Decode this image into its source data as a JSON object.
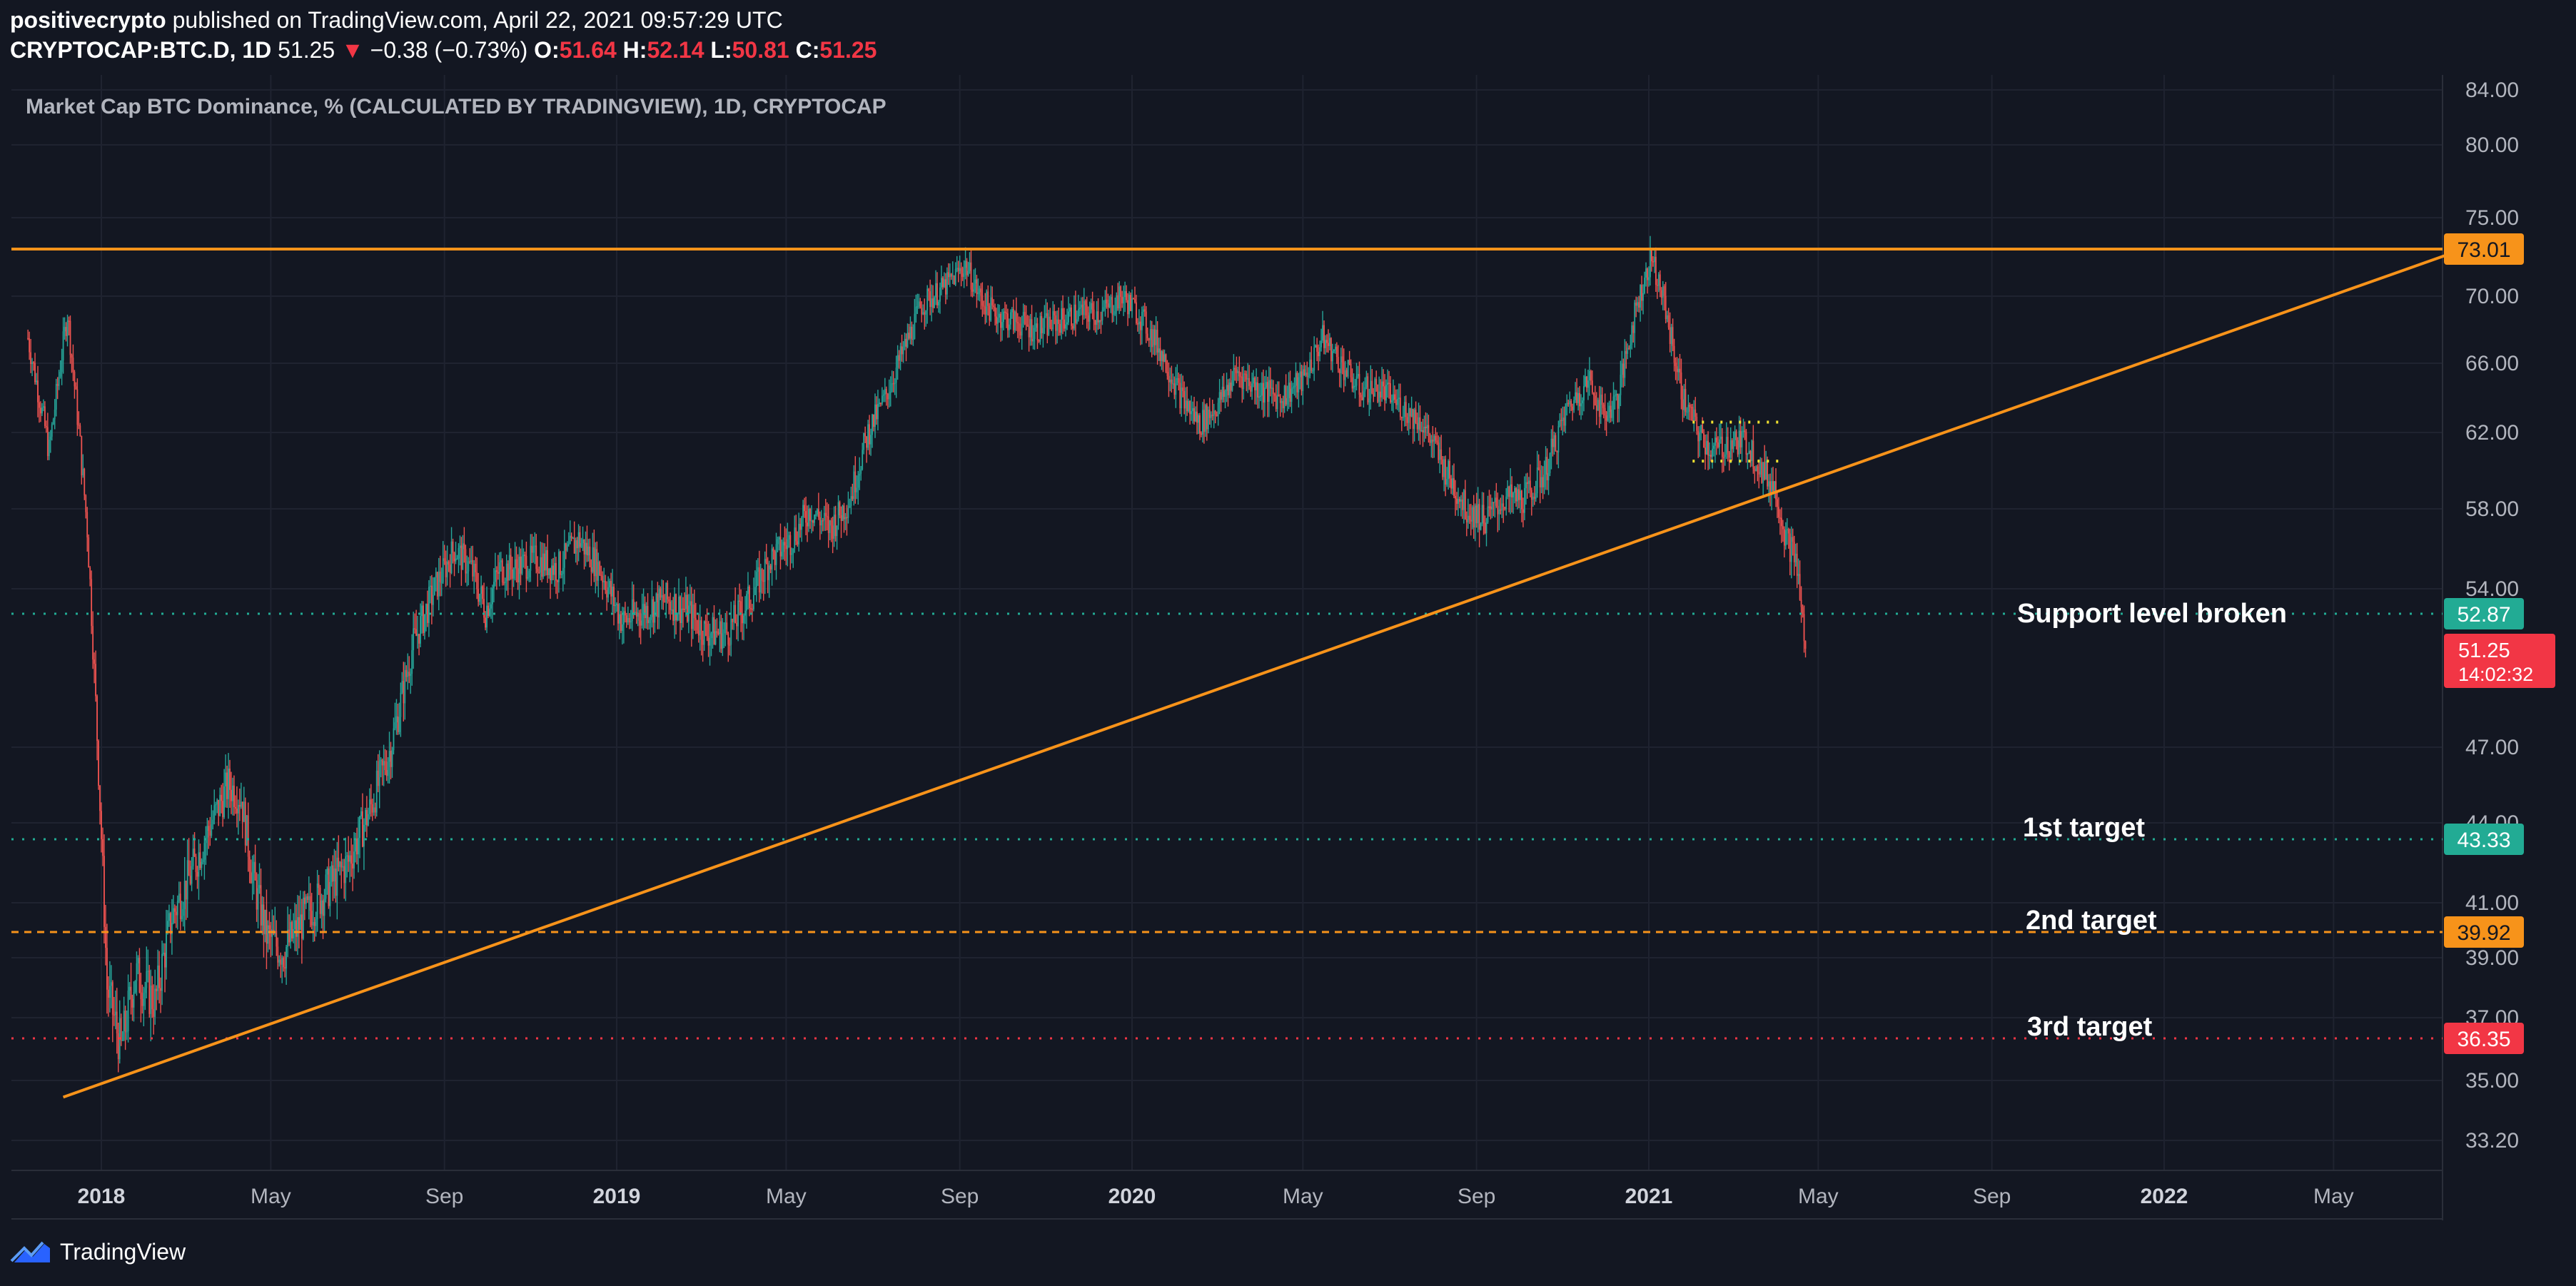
{
  "header": {
    "publisher": "positivecrypto",
    "publish_text": "published on TradingView.com, April 22, 2021 09:57:29 UTC",
    "symbol": "CRYPTOCAP:BTC.D, 1D",
    "last": "51.25",
    "change_arrow": "▼",
    "change": "−0.38 (−0.73%)",
    "o_label": "O:",
    "o": "51.64",
    "h_label": "H:",
    "h": "52.14",
    "l_label": "L:",
    "l": "50.81",
    "c_label": "C:",
    "c": "51.25"
  },
  "footer": {
    "brand": "TradingView"
  },
  "chart_data": {
    "type": "candlestick",
    "title": "Market Cap BTC Dominance, % (CALCULATED BY TRADINGVIEW), 1D, CRYPTOCAP",
    "y_ticks": [
      "84.00",
      "80.00",
      "75.00",
      "70.00",
      "66.00",
      "62.00",
      "58.00",
      "54.00",
      "47.00",
      "44.00",
      "41.00",
      "39.00",
      "37.00",
      "35.00",
      "33.20"
    ],
    "x_ticks": [
      "2018",
      "May",
      "Sep",
      "2019",
      "May",
      "Sep",
      "2020",
      "May",
      "Sep",
      "2021",
      "May",
      "Sep",
      "2022",
      "May"
    ],
    "series": [
      {
        "path": [
          [
            "2017-11-10",
            67.5
          ],
          [
            "2017-11-25",
            61
          ],
          [
            "2017-12-08",
            69
          ],
          [
            "2017-12-22",
            57
          ],
          [
            "2018-01-05",
            38
          ],
          [
            "2018-01-15",
            36
          ],
          [
            "2018-01-25",
            38.5
          ],
          [
            "2018-02-08",
            37.5
          ],
          [
            "2018-02-20",
            40.5
          ],
          [
            "2018-03-05",
            42
          ],
          [
            "2018-03-20",
            44
          ],
          [
            "2018-04-01",
            45.5
          ],
          [
            "2018-04-10",
            45
          ],
          [
            "2018-04-18",
            42
          ],
          [
            "2018-04-28",
            39.8
          ],
          [
            "2018-05-10",
            39.2
          ],
          [
            "2018-05-25",
            40.5
          ],
          [
            "2018-06-10",
            41.5
          ],
          [
            "2018-06-25",
            42.5
          ],
          [
            "2018-07-10",
            44.5
          ],
          [
            "2018-07-25",
            47
          ],
          [
            "2018-08-10",
            51.5
          ],
          [
            "2018-08-25",
            54
          ],
          [
            "2018-09-08",
            56
          ],
          [
            "2018-09-20",
            55
          ],
          [
            "2018-09-30",
            53
          ],
          [
            "2018-10-10",
            55
          ],
          [
            "2018-10-20",
            55
          ],
          [
            "2018-11-05",
            55.5
          ],
          [
            "2018-11-20",
            55
          ],
          [
            "2018-12-05",
            56.5
          ],
          [
            "2018-12-20",
            55
          ],
          [
            "2019-01-05",
            52.5
          ],
          [
            "2019-01-20",
            53
          ],
          [
            "2019-02-05",
            53.5
          ],
          [
            "2019-02-20",
            53
          ],
          [
            "2019-03-05",
            52
          ],
          [
            "2019-03-20",
            52
          ],
          [
            "2019-04-05",
            53.5
          ],
          [
            "2019-04-20",
            55.5
          ],
          [
            "2019-05-05",
            56.5
          ],
          [
            "2019-05-18",
            58
          ],
          [
            "2019-06-01",
            57
          ],
          [
            "2019-06-15",
            58.5
          ],
          [
            "2019-06-28",
            62
          ],
          [
            "2019-07-10",
            64
          ],
          [
            "2019-07-22",
            66.5
          ],
          [
            "2019-08-05",
            69.5
          ],
          [
            "2019-08-20",
            70.5
          ],
          [
            "2019-09-05",
            72
          ],
          [
            "2019-09-15",
            70
          ],
          [
            "2019-09-25",
            69
          ],
          [
            "2019-10-10",
            68.5
          ],
          [
            "2019-10-25",
            68
          ],
          [
            "2019-11-10",
            68.5
          ],
          [
            "2019-11-25",
            69
          ],
          [
            "2019-12-10",
            69
          ],
          [
            "2019-12-25",
            70
          ],
          [
            "2020-01-05",
            69
          ],
          [
            "2020-01-20",
            67
          ],
          [
            "2020-02-05",
            64
          ],
          [
            "2020-02-18",
            62.5
          ],
          [
            "2020-03-01",
            63.5
          ],
          [
            "2020-03-15",
            65.5
          ],
          [
            "2020-04-01",
            64.5
          ],
          [
            "2020-04-15",
            64
          ],
          [
            "2020-05-01",
            65
          ],
          [
            "2020-05-15",
            67.5
          ],
          [
            "2020-05-28",
            66
          ],
          [
            "2020-06-10",
            64.5
          ],
          [
            "2020-06-25",
            64.5
          ],
          [
            "2020-07-10",
            63.5
          ],
          [
            "2020-07-25",
            62.5
          ],
          [
            "2020-08-10",
            60
          ],
          [
            "2020-08-25",
            58
          ],
          [
            "2020-09-08",
            57.5
          ],
          [
            "2020-09-20",
            58.5
          ],
          [
            "2020-10-05",
            58.5
          ],
          [
            "2020-10-20",
            60
          ],
          [
            "2020-11-05",
            63.5
          ],
          [
            "2020-11-20",
            65
          ],
          [
            "2020-11-30",
            63
          ],
          [
            "2020-12-10",
            64
          ],
          [
            "2020-12-22",
            69
          ],
          [
            "2021-01-03",
            72.5
          ],
          [
            "2021-01-12",
            69.5
          ],
          [
            "2021-01-25",
            64
          ],
          [
            "2021-02-05",
            62
          ],
          [
            "2021-02-15",
            61
          ],
          [
            "2021-02-28",
            61.5
          ],
          [
            "2021-03-12",
            61.5
          ],
          [
            "2021-03-22",
            60
          ],
          [
            "2021-04-01",
            59
          ],
          [
            "2021-04-08",
            56.5
          ],
          [
            "2021-04-15",
            55.5
          ],
          [
            "2021-04-22",
            51.25
          ]
        ]
      }
    ],
    "hlines": [
      {
        "value": 73.01,
        "label": "73.01",
        "style": "solid",
        "color": "#f7931a"
      },
      {
        "value": 52.87,
        "label": "52.87",
        "style": "dotted",
        "color": "#22ab94",
        "text": "Support level broken"
      },
      {
        "value": 43.33,
        "label": "43.33",
        "style": "dotted",
        "color": "#22ab94",
        "text": "1st target"
      },
      {
        "value": 39.92,
        "label": "39.92",
        "style": "dashed",
        "color": "#f7931a",
        "text": "2nd target"
      },
      {
        "value": 36.35,
        "label": "36.35",
        "style": "dotted",
        "color": "#f23645",
        "text": "3rd target"
      }
    ],
    "trendline": {
      "from": [
        "2017-12-05",
        34.5
      ],
      "to": [
        "2022-08-01",
        73.01
      ],
      "color": "#f7931a"
    },
    "consolidation": [
      {
        "value": 62.6
      },
      {
        "value": 60.5
      }
    ],
    "last_price": {
      "value": "51.25",
      "countdown": "14:02:32"
    },
    "colors": {
      "up": "#26a69a",
      "down": "#ef5350",
      "background": "#131722",
      "grid": "#1f2330"
    }
  }
}
